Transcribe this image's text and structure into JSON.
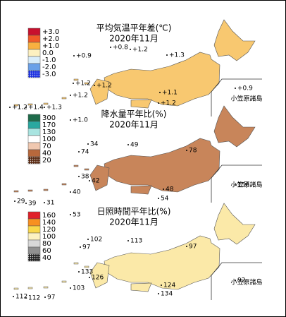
{
  "panels": [
    {
      "title": "平均気温平年差(℃)",
      "subtitle": "2020年11月",
      "legend": [
        "+3.0",
        "+2.0",
        "+1.0",
        "0.0",
        "-1.0",
        "-2.0",
        "-3.0"
      ],
      "stations": [
        "+0.8",
        "+1.2",
        "+0.9",
        "+1.3",
        "+1.2",
        "+1.2",
        "+1.1",
        "+0.9",
        "+1.2",
        "+1.2",
        "+1.2",
        "+1.4",
        "+1.3",
        "+1.0"
      ],
      "inset_label": "小笠原諸島"
    },
    {
      "title": "降水量平年比(%)",
      "subtitle": "2020年11月",
      "legend": [
        "300",
        "170",
        "130",
        "100",
        "70",
        "40",
        "20"
      ],
      "stations": [
        "34",
        "49",
        "74",
        "78",
        "38",
        "42",
        "48",
        "54",
        "156",
        "29",
        "39",
        "31",
        "40"
      ],
      "inset_label": "小笠原諸島"
    },
    {
      "title": "日照時間平年比(%)",
      "subtitle": "2020年11月",
      "legend": [
        "160",
        "140",
        "120",
        "100",
        "80",
        "60",
        "40"
      ],
      "stations": [
        "53",
        "102",
        "113",
        "97",
        "97",
        "133",
        "126",
        "124",
        "134",
        "92",
        "112",
        "112",
        "97",
        "103"
      ],
      "inset_label": "小笠原諸島"
    }
  ]
}
